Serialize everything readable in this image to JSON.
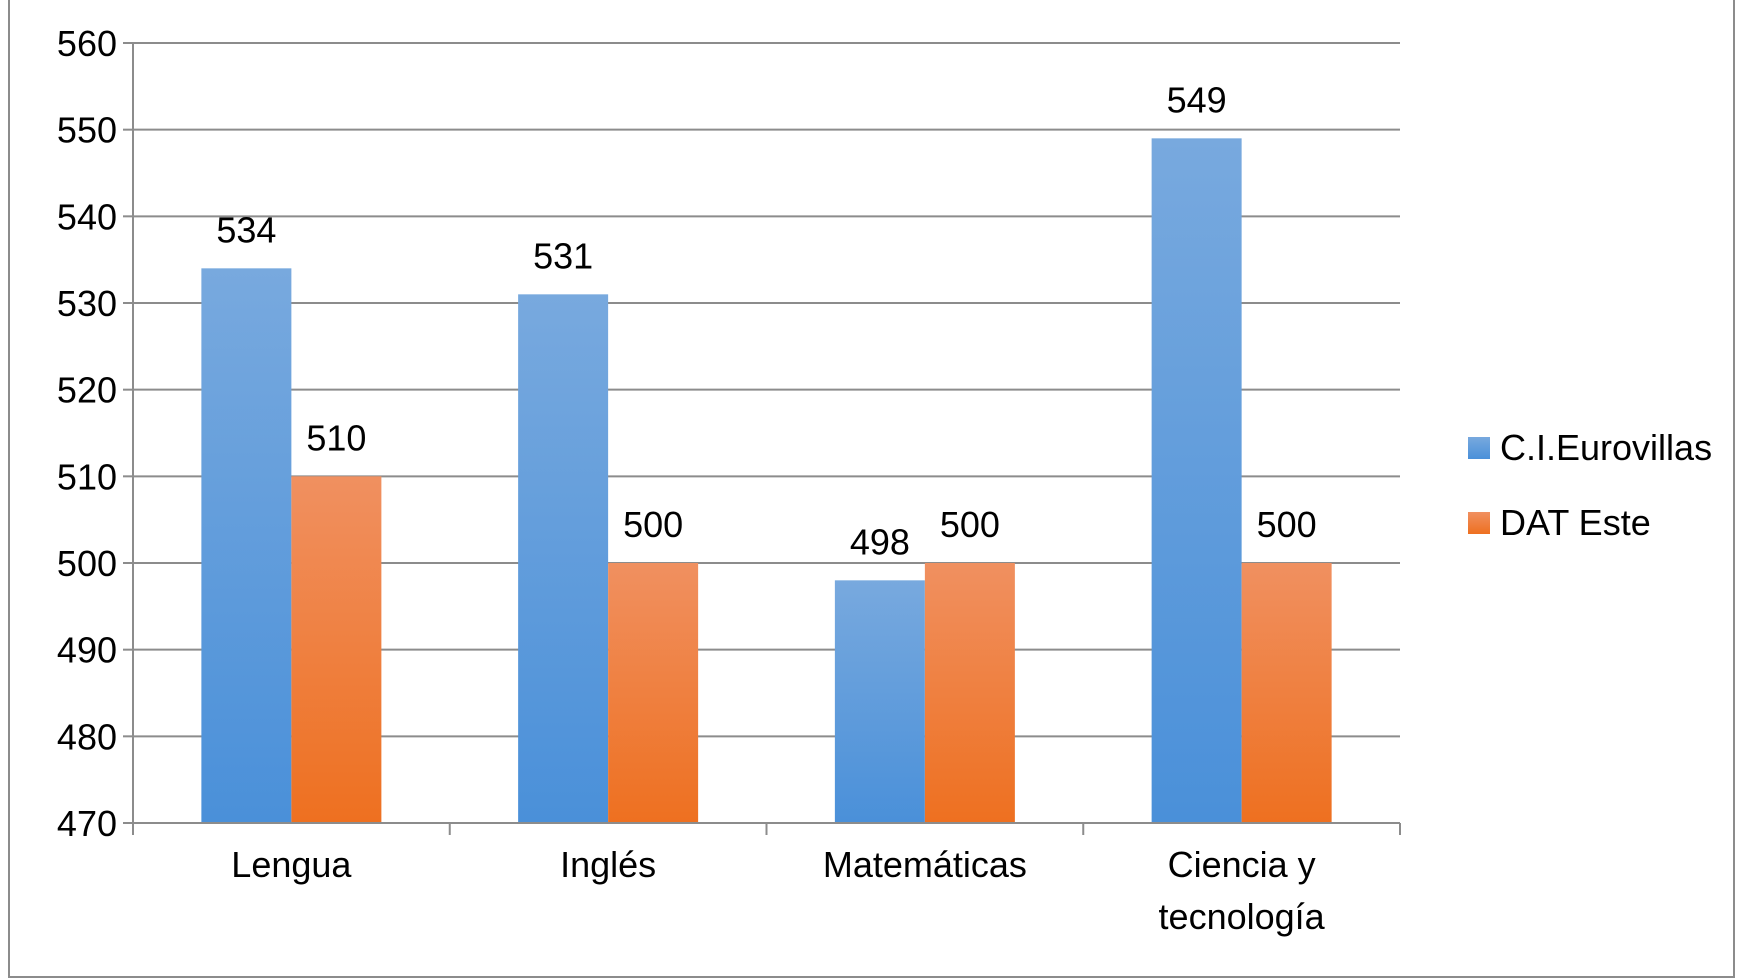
{
  "chart_data": {
    "type": "bar",
    "title": "",
    "xlabel": "",
    "ylabel": "",
    "categories": [
      [
        "Lengua"
      ],
      [
        "Inglés"
      ],
      [
        "Matemáticas"
      ],
      [
        "Ciencia y",
        "tecnología"
      ]
    ],
    "series": [
      {
        "name": "C.I.Eurovillas",
        "values": [
          534,
          531,
          498,
          549
        ],
        "color": "#4A90D9",
        "color_light": "#78A9DE"
      },
      {
        "name": "DAT Este",
        "values": [
          510,
          500,
          500,
          500
        ],
        "color": "#EE7020",
        "color_light": "#F09060"
      }
    ],
    "ylim": [
      470,
      560
    ],
    "yticks": [
      470,
      480,
      490,
      500,
      510,
      520,
      530,
      540,
      550,
      560
    ],
    "grid": true,
    "legend_position": "right"
  }
}
